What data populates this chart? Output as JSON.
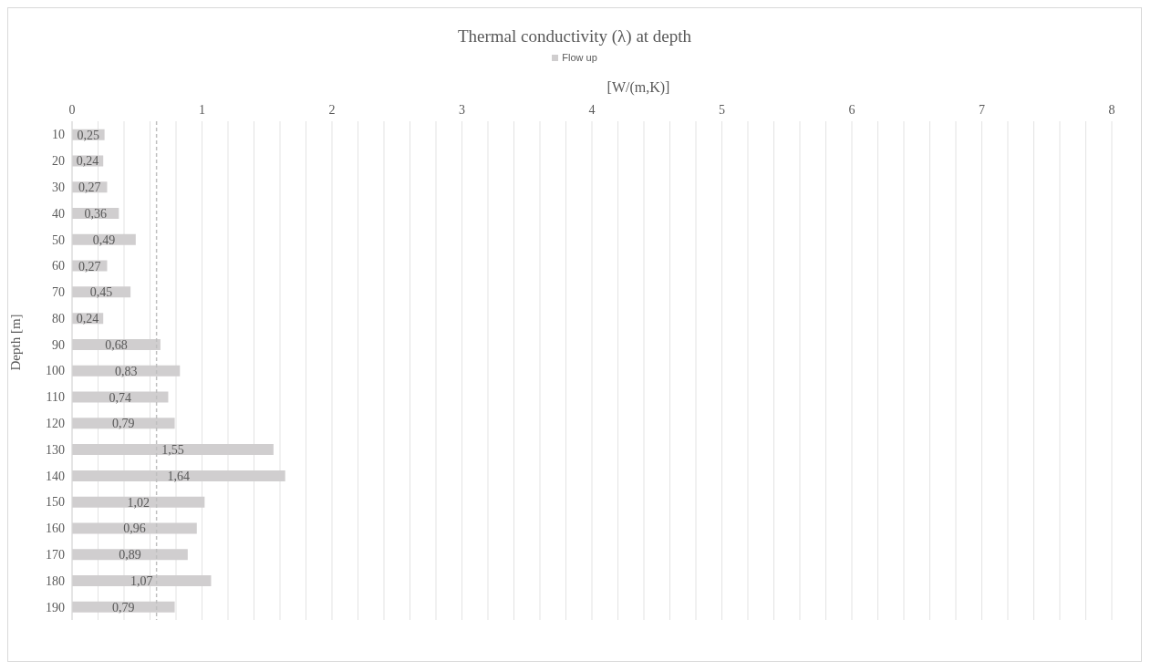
{
  "chart_data": {
    "type": "bar",
    "orientation": "horizontal",
    "title": "Thermal conductivity (λ) at depth",
    "xlabel": "[W/(m,K)]",
    "ylabel": "Depth [m]",
    "categories": [
      "10",
      "20",
      "30",
      "40",
      "50",
      "60",
      "70",
      "80",
      "90",
      "100",
      "110",
      "120",
      "130",
      "140",
      "150",
      "160",
      "170",
      "180",
      "190"
    ],
    "series": [
      {
        "name": "Flow up",
        "color": "#d0cecf",
        "values": [
          0.25,
          0.24,
          0.27,
          0.36,
          0.49,
          0.27,
          0.45,
          0.24,
          0.68,
          0.83,
          0.74,
          0.79,
          1.55,
          1.64,
          1.02,
          0.96,
          0.89,
          1.07,
          0.79
        ],
        "value_labels": [
          "0,25",
          "0,24",
          "0,27",
          "0,36",
          "0,49",
          "0,27",
          "0,45",
          "0,24",
          "0,68",
          "0,83",
          "0,74",
          "0,79",
          "1,55",
          "1,64",
          "1,02",
          "0,96",
          "0,89",
          "1,07",
          "0,79"
        ]
      }
    ],
    "xlim": [
      0,
      8
    ],
    "xticks": [
      0,
      {
        "value": 0.2,
        "label": null
      },
      {
        "value": 0.4,
        "label": null
      },
      {
        "value": 0.6,
        "label": null
      },
      {
        "value": 0.8,
        "label": null
      },
      1,
      {
        "value": 1.2,
        "label": null
      },
      {
        "value": 1.4,
        "label": null
      },
      {
        "value": 1.6,
        "label": null
      },
      {
        "value": 1.8,
        "label": null
      },
      2,
      {
        "value": 2.2,
        "label": null
      },
      {
        "value": 2.4,
        "label": null
      },
      {
        "value": 2.6,
        "label": null
      },
      {
        "value": 2.8,
        "label": null
      },
      3,
      {
        "value": 3.2,
        "label": null
      },
      {
        "value": 3.4,
        "label": null
      },
      {
        "value": 3.6,
        "label": null
      },
      {
        "value": 3.8,
        "label": null
      },
      4,
      {
        "value": 4.2,
        "label": null
      },
      {
        "value": 4.4,
        "label": null
      },
      {
        "value": 4.6,
        "label": null
      },
      {
        "value": 4.8,
        "label": null
      },
      5,
      {
        "value": 5.2,
        "label": null
      },
      {
        "value": 5.4,
        "label": null
      },
      {
        "value": 5.6,
        "label": null
      },
      {
        "value": 5.8,
        "label": null
      },
      6,
      {
        "value": 6.2,
        "label": null
      },
      {
        "value": 6.4,
        "label": null
      },
      {
        "value": 6.6,
        "label": null
      },
      {
        "value": 6.8,
        "label": null
      },
      7,
      {
        "value": 7.2,
        "label": null
      },
      {
        "value": 7.4,
        "label": null
      },
      {
        "value": 7.6,
        "label": null
      },
      {
        "value": 7.8,
        "label": null
      },
      8
    ],
    "ref_lines": [
      {
        "axis": "x",
        "value": 0.65,
        "color": "#bfbfbf",
        "line_style": "dashed"
      }
    ],
    "grid": "x",
    "legend": "top"
  }
}
